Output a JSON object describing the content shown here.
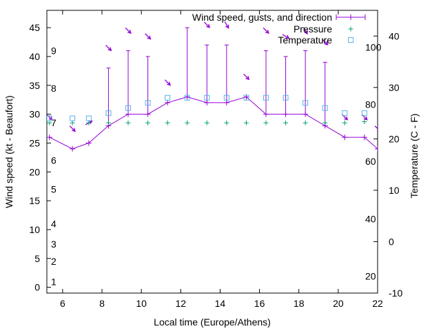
{
  "chart_data": {
    "type": "line",
    "title": "",
    "xlabel": "Local time (Europe/Athens)",
    "ylabel": "Wind speed (kt - Beaufort)",
    "y2label": "Temperature (C - F)",
    "xlim": [
      5.2,
      22
    ],
    "ylim": [
      -1,
      48
    ],
    "y2lim": [
      -10,
      45
    ],
    "x_ticks": [
      6,
      8,
      10,
      12,
      14,
      16,
      18,
      20,
      22
    ],
    "y_ticks": [
      0,
      5,
      10,
      15,
      20,
      25,
      30,
      35,
      40,
      45
    ],
    "y2_ticks": [
      -10,
      0,
      10,
      20,
      30,
      40
    ],
    "beaufort_labels": [
      {
        "label": "1",
        "y": 1
      },
      {
        "label": "2",
        "y": 4.5
      },
      {
        "label": "3",
        "y": 7.5
      },
      {
        "label": "4",
        "y": 11
      },
      {
        "label": "5",
        "y": 17
      },
      {
        "label": "6",
        "y": 22
      },
      {
        "label": "7",
        "y": 28.5
      },
      {
        "label": "8",
        "y": 34.5
      },
      {
        "label": "9",
        "y": 41
      }
    ],
    "fahrenheit_labels": [
      {
        "label": "20",
        "t": -6.7
      },
      {
        "label": "40",
        "t": 4.4
      },
      {
        "label": "60",
        "t": 15.6
      },
      {
        "label": "80",
        "t": 26.7
      },
      {
        "label": "100",
        "t": 37.8
      }
    ],
    "legend": [
      "Wind speed, gusts, and direction",
      "Pressure",
      "Temperature"
    ],
    "series": [
      {
        "name": "Wind speed, gusts, and direction",
        "color": "#9400d3",
        "x": [
          5.33,
          6.5,
          7.33,
          8.33,
          9.33,
          10.33,
          11.33,
          12.33,
          13.33,
          14.33,
          15.33,
          16.33,
          17.33,
          18.33,
          19.33,
          20.33,
          21.33,
          22
        ],
        "speed": [
          26,
          24,
          25,
          28,
          30,
          30,
          32,
          33,
          32,
          32,
          33,
          30,
          30,
          30,
          28,
          26,
          26,
          24
        ],
        "gust": [
          26,
          24,
          25,
          38,
          41,
          40,
          32,
          45,
          42,
          42,
          33,
          41,
          40,
          41,
          39,
          26,
          26,
          24
        ],
        "dir_deg": [
          315,
          315,
          240,
          315,
          315,
          315,
          315,
          315,
          315,
          330,
          315,
          315,
          300,
          330,
          315,
          315,
          315,
          315
        ]
      },
      {
        "name": "Pressure",
        "color": "#009e73",
        "x": [
          5.33,
          6.5,
          7.33,
          8.33,
          9.33,
          10.33,
          11.33,
          12.33,
          13.33,
          14.33,
          15.33,
          16.33,
          17.33,
          18.33,
          19.33,
          20.33,
          21.33
        ],
        "values": [
          28.5,
          28.5,
          28.5,
          28.5,
          28.5,
          28.5,
          28.5,
          28.5,
          28.5,
          28.5,
          28.5,
          28.5,
          28.5,
          28.5,
          28.5,
          28.5,
          28.7
        ]
      },
      {
        "name": "Temperature",
        "color": "#56b4e9",
        "x": [
          5.33,
          6.5,
          7.33,
          8.33,
          9.33,
          10.33,
          11.33,
          12.33,
          13.33,
          14.33,
          15.33,
          16.33,
          17.33,
          18.33,
          19.33,
          20.33,
          21.33
        ],
        "values": [
          24,
          24,
          24,
          25,
          26,
          27,
          28,
          28,
          28,
          28,
          28,
          28,
          28,
          27,
          26,
          25,
          25
        ]
      }
    ]
  }
}
